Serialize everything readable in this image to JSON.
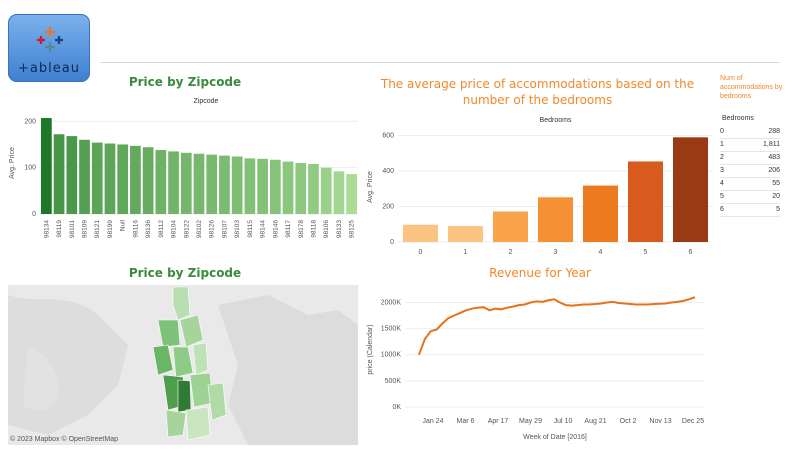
{
  "logo": {
    "text": "+ableau"
  },
  "zip_bar": {
    "title": "Price by Zipcode",
    "header": "Zipcode",
    "ylabel": "Avg. Price",
    "chart_data": {
      "type": "bar",
      "categories": [
        "98134",
        "98119",
        "98101",
        "98109",
        "98121",
        "98199",
        "Null",
        "98116",
        "98136",
        "98112",
        "98104",
        "98122",
        "98102",
        "98126",
        "98107",
        "98103",
        "98115",
        "98144",
        "98146",
        "98117",
        "98178",
        "98118",
        "98106",
        "98133",
        "98125"
      ],
      "values": [
        207,
        172,
        168,
        160,
        154,
        152,
        150,
        147,
        144,
        138,
        135,
        132,
        130,
        128,
        126,
        124,
        120,
        119,
        117,
        113,
        110,
        108,
        100,
        92,
        86
      ],
      "ylim": [
        0,
        220
      ],
      "yticks": [
        0,
        100,
        200
      ]
    }
  },
  "bedrooms_bar": {
    "title": "The average price of accommodations based on the number of the bedrooms",
    "header": "Bedrooms",
    "ylabel": "Avg. Price",
    "chart_data": {
      "type": "bar",
      "categories": [
        "0",
        "1",
        "2",
        "3",
        "4",
        "5",
        "6"
      ],
      "values": [
        97,
        90,
        172,
        252,
        318,
        454,
        590
      ],
      "ylim": [
        0,
        620
      ],
      "yticks": [
        0,
        200,
        400,
        600
      ],
      "colors": [
        "#fdc481",
        "#fdc481",
        "#f9a34a",
        "#f59034",
        "#ec7a1e",
        "#d85a1e",
        "#9a3a14"
      ]
    }
  },
  "num_table": {
    "title": "Num of accommodations by bedrooms",
    "header": "Bedrooms",
    "rows": [
      {
        "label": "0",
        "value": "288"
      },
      {
        "label": "1",
        "value": "1,811"
      },
      {
        "label": "2",
        "value": "483"
      },
      {
        "label": "3",
        "value": "206"
      },
      {
        "label": "4",
        "value": "55"
      },
      {
        "label": "5",
        "value": "20"
      },
      {
        "label": "6",
        "value": "5"
      }
    ]
  },
  "map": {
    "title": "Price by Zipcode",
    "attribution": "© 2023 Mapbox © OpenStreetMap"
  },
  "revenue": {
    "title": "Revenue for Year",
    "xlabel": "Week of Date [2016]",
    "ylabel": "price (Calendar)",
    "chart_data": {
      "type": "line",
      "x_labels": [
        "Jan 24",
        "Mar 6",
        "Apr 17",
        "May 29",
        "Jul 10",
        "Aug 21",
        "Oct 2",
        "Nov 13",
        "Dec 25"
      ],
      "y_ticks": [
        "0K",
        "500K",
        "1000K",
        "1500K",
        "2000K"
      ],
      "ylim": [
        0,
        2200000
      ],
      "values": [
        1000000,
        1300000,
        1450000,
        1480000,
        1600000,
        1700000,
        1750000,
        1800000,
        1850000,
        1880000,
        1900000,
        1910000,
        1850000,
        1880000,
        1870000,
        1900000,
        1920000,
        1950000,
        1960000,
        2000000,
        2020000,
        2010000,
        2040000,
        2060000,
        2000000,
        1950000,
        1940000,
        1950000,
        1960000,
        1960000,
        1970000,
        1980000,
        2000000,
        2010000,
        1990000,
        1980000,
        1970000,
        1960000,
        1960000,
        1960000,
        1970000,
        1975000,
        1980000,
        2000000,
        2010000,
        2030000,
        2060000,
        2100000
      ],
      "color": "#e5731b"
    }
  }
}
